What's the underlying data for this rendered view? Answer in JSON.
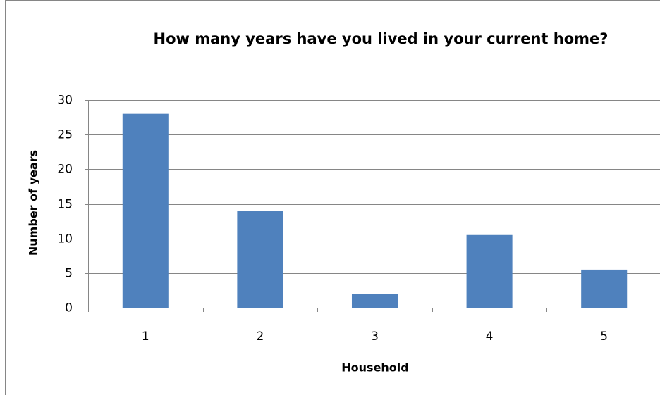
{
  "chart_data": {
    "type": "bar",
    "title": "How many years have you lived in your current home?",
    "x_label": "Household",
    "y_label": "Number of years",
    "categories": [
      "1",
      "2",
      "3",
      "4",
      "5"
    ],
    "values": [
      28,
      14,
      2,
      10.5,
      5.5
    ],
    "color": "#4f81bd",
    "ylim": [
      0,
      30
    ],
    "yticks": [
      0,
      5,
      10,
      15,
      20,
      25,
      30
    ],
    "grid": true
  }
}
